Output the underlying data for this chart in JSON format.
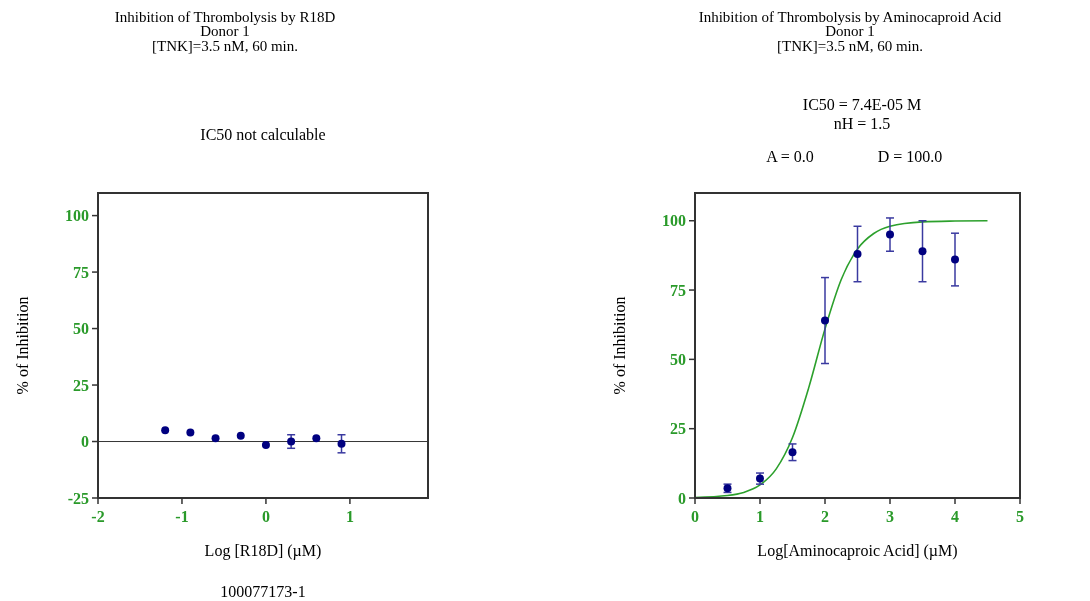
{
  "chart_data": [
    {
      "type": "scatter",
      "title": "Inhibition of Thrombolysis by R18D",
      "subtitle": "Donor 1\n[TNK]=3.5 nM, 60 min.",
      "xlabel": "Log [R18D] (µM)",
      "ylabel": "% of Inhibition",
      "annotations": [
        "IC50 not calculable",
        "100077173-1"
      ],
      "xlim": [
        -2,
        1.93
      ],
      "xticks": [
        -2,
        -1,
        0,
        1
      ],
      "ylim": [
        -25,
        110
      ],
      "yticks": [
        -25,
        0,
        25,
        50,
        75,
        100
      ],
      "marker": "circle",
      "grid": false,
      "ref_lines": [
        {
          "axis": "y",
          "value": 0,
          "color": "#000000"
        }
      ],
      "series": [
        {
          "color": "#000080",
          "x": [
            -1.2,
            -0.9,
            -0.6,
            -0.3,
            0,
            0.3,
            0.6,
            0.9
          ],
          "values": [
            5,
            4,
            1.5,
            2.5,
            -1.5,
            0,
            1.5,
            -1
          ],
          "errors": [
            null,
            null,
            null,
            null,
            null,
            3,
            null,
            4
          ]
        }
      ]
    },
    {
      "type": "scatter",
      "title": "Inhibition of Thrombolysis by Aminocaproid Acid",
      "subtitle": "Donor 1\n[TNK]=3.5 nM, 60 min.",
      "xlabel": "Log[Aminocaproic Acid] (µM)",
      "ylabel": "% of Inhibition",
      "annotations": [
        "IC50 = 7.4E-05 M",
        "nH = 1.5",
        "A = 0.0",
        "D = 100.0"
      ],
      "xlim": [
        0,
        5
      ],
      "xticks": [
        0,
        1,
        2,
        3,
        4,
        5
      ],
      "ylim": [
        0,
        110
      ],
      "yticks": [
        0,
        25,
        50,
        75,
        100
      ],
      "marker": "circle",
      "grid": false,
      "series": [
        {
          "type": "line",
          "color": "#2ca02c",
          "marker": "none",
          "x": [
            0,
            0.5,
            0.75,
            1,
            1.25,
            1.5,
            1.75,
            2,
            2.25,
            2.5,
            2.75,
            3,
            3.5,
            4,
            4.5
          ],
          "values": [
            0.2,
            0.9,
            2,
            4.7,
            10.5,
            21.8,
            39.8,
            61,
            78.8,
            89.8,
            95.4,
            98,
            99.6,
            99.9,
            100
          ]
        },
        {
          "color": "#000080",
          "x": [
            0.5,
            1,
            1.5,
            2,
            2.5,
            3,
            3.5,
            4
          ],
          "values": [
            3.5,
            7,
            16.5,
            64,
            88,
            95,
            89,
            86
          ],
          "errors": [
            1.5,
            2,
            3,
            15.5,
            10,
            6,
            11,
            9.5
          ]
        }
      ]
    }
  ]
}
